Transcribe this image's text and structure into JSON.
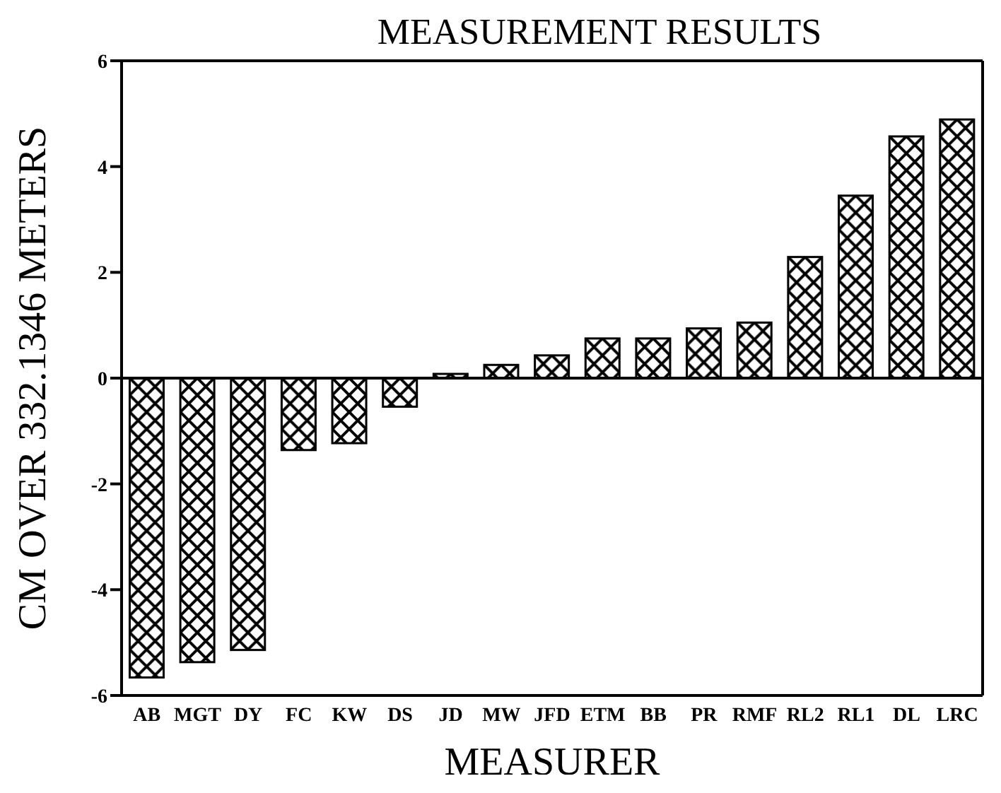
{
  "chart_data": {
    "type": "bar",
    "title": "MEASUREMENT RESULTS",
    "xlabel": "MEASURER",
    "ylabel": "CM OVER 332.1346 METERS",
    "categories": [
      "AB",
      "MGT",
      "DY",
      "FC",
      "KW",
      "DS",
      "JD",
      "MW",
      "JFD",
      "ETM",
      "BB",
      "PR",
      "RMF",
      "RL2",
      "RL1",
      "DL",
      "LRC"
    ],
    "values": [
      -5.66,
      -5.37,
      -5.14,
      -1.36,
      -1.23,
      -0.54,
      0.08,
      0.25,
      0.43,
      0.75,
      0.75,
      0.94,
      1.05,
      2.29,
      3.45,
      4.57,
      4.89
    ],
    "color": "#000000",
    "ylim": [
      -6,
      6
    ],
    "yticks": [
      -6,
      -4,
      -2,
      0,
      2,
      4,
      6
    ],
    "legend": false
  }
}
